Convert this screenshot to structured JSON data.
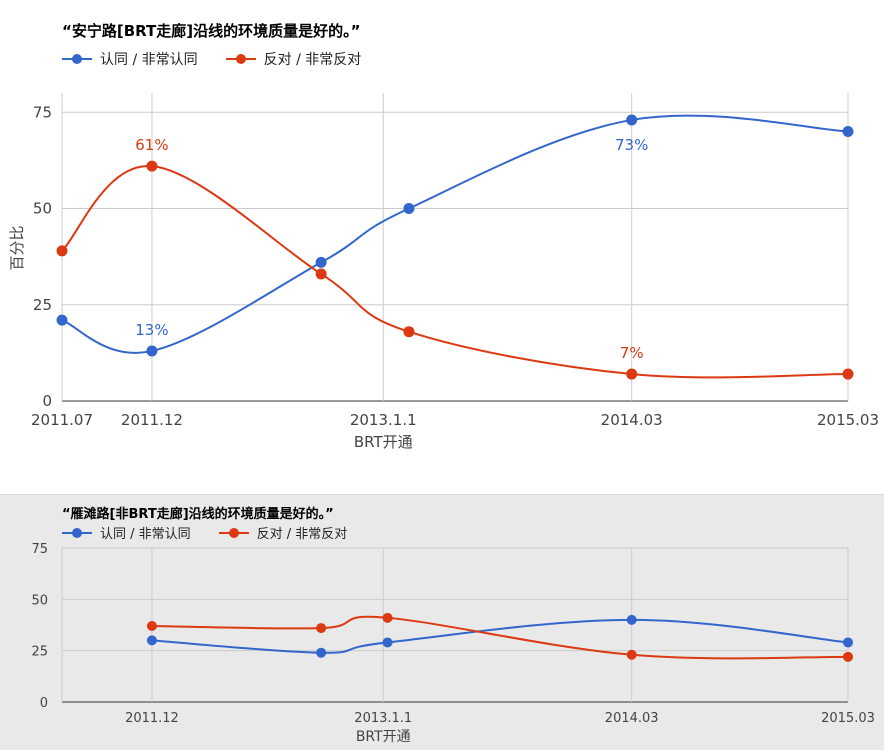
{
  "chart_data": [
    {
      "type": "line",
      "title": "“安宁路[BRT走廊]沿线的环境质量是好的。”",
      "xlabel": "BRT开通",
      "ylabel": "百分比",
      "ylim": [
        0,
        80
      ],
      "yticks": [
        0,
        25,
        50,
        75
      ],
      "x": [
        2011.54,
        2011.96,
        2012.75,
        2013.16,
        2014.2,
        2015.21
      ],
      "xticks": [
        {
          "value": 2011.54,
          "label": "2011.07"
        },
        {
          "value": 2011.96,
          "label": "2011.12"
        },
        {
          "value": 2013.04,
          "label": "2013.1.1"
        },
        {
          "value": 2014.2,
          "label": "2014.03"
        },
        {
          "value": 2015.21,
          "label": "2015.03"
        }
      ],
      "grid": true,
      "legend_position": "top-left",
      "series": [
        {
          "name": "认同 / 非常认同",
          "color": "#3366cc",
          "values": [
            21,
            13,
            36,
            50,
            73,
            70
          ]
        },
        {
          "name": "反对 / 非常反对",
          "color": "#dc3912",
          "values": [
            39,
            61,
            33,
            18,
            7,
            7
          ]
        }
      ],
      "annotations": [
        {
          "series": 1,
          "index": 1,
          "text": "61%",
          "position": "above"
        },
        {
          "series": 0,
          "index": 1,
          "text": "13%",
          "position": "above"
        },
        {
          "series": 0,
          "index": 4,
          "text": "73%",
          "position": "below"
        },
        {
          "series": 1,
          "index": 4,
          "text": "7%",
          "position": "above"
        }
      ]
    },
    {
      "type": "line",
      "title": "“雁滩路[非BRT走廊]沿线的环境质量是好的。”",
      "xlabel": "BRT开通",
      "ylabel": "",
      "ylim": [
        0,
        75
      ],
      "yticks": [
        0,
        25,
        50,
        75
      ],
      "x": [
        2011.96,
        2012.75,
        2013.06,
        2014.2,
        2015.21
      ],
      "xticks": [
        {
          "value": 2011.96,
          "label": "2011.12"
        },
        {
          "value": 2013.04,
          "label": "2013.1.1"
        },
        {
          "value": 2014.2,
          "label": "2014.03"
        },
        {
          "value": 2015.21,
          "label": "2015.03"
        }
      ],
      "grid": true,
      "legend_position": "top-left",
      "series": [
        {
          "name": "认同 / 非常认同",
          "color": "#3366cc",
          "values": [
            30,
            24,
            29,
            40,
            29
          ]
        },
        {
          "name": "反对 / 非常反对",
          "color": "#dc3912",
          "values": [
            37,
            36,
            41,
            23,
            22
          ]
        }
      ],
      "annotations": []
    }
  ]
}
